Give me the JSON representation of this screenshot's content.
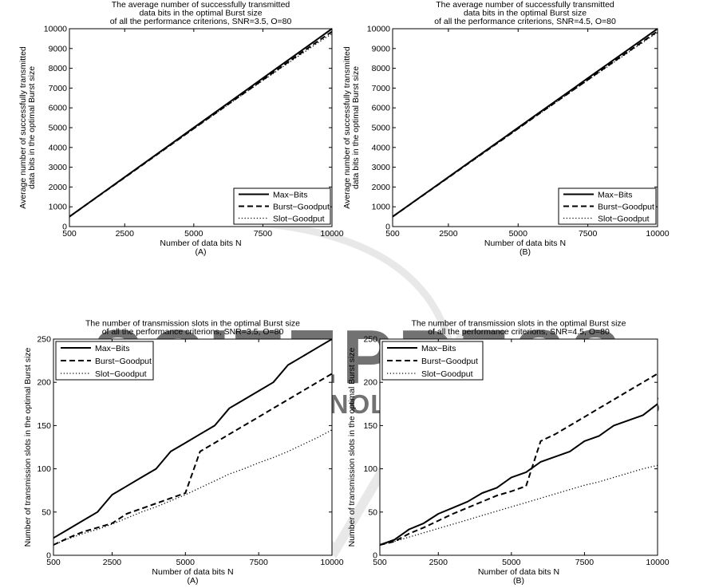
{
  "watermark": {
    "line1": "SCITEPRESS",
    "line2": "SCIENCE AND TECHNOLOGY PUBLICATIONS",
    "color": "#cfcfcf"
  },
  "chart_data": [
    {
      "type": "line",
      "title": "The average number of successfully transmitted\ndata bits in the optimal Burst size\nof all the performance criterions, SNR=3.5, O=80",
      "xlabel": "Number of data bits N",
      "ylabel": "Average number of successfully transmitted\ndata bits in the optimal Burst size",
      "caption": "(A)",
      "xlim": [
        500,
        10000
      ],
      "ylim": [
        0,
        10000
      ],
      "xticks": [
        "500",
        "2500",
        "5000",
        "7500",
        "10000"
      ],
      "yticks": [
        "0",
        "1000",
        "2000",
        "3000",
        "4000",
        "5000",
        "6000",
        "7000",
        "8000",
        "9000",
        "10000"
      ],
      "legend_position": "bottom-right",
      "x": [
        500,
        1000,
        1500,
        2000,
        2500,
        3000,
        3500,
        4000,
        4500,
        5000,
        5500,
        6000,
        6500,
        7000,
        7500,
        8000,
        8500,
        9000,
        9500,
        10000
      ],
      "series": [
        {
          "name": "Max−Bits",
          "style": "solid",
          "values": [
            500,
            1000,
            1500,
            2000,
            2500,
            3000,
            3500,
            4000,
            4500,
            5000,
            5500,
            6000,
            6500,
            7000,
            7500,
            8000,
            8500,
            9000,
            9500,
            10000
          ]
        },
        {
          "name": "Burst−Goodput",
          "style": "dashed",
          "values": [
            500,
            995,
            1490,
            1985,
            2480,
            2975,
            3470,
            3965,
            4460,
            4955,
            5450,
            5940,
            6435,
            6925,
            7420,
            7905,
            8400,
            8890,
            9380,
            9850
          ]
        },
        {
          "name": "Slot−Goodput",
          "style": "dotted",
          "values": [
            500,
            995,
            1490,
            1985,
            2480,
            2975,
            3465,
            3960,
            4450,
            4945,
            5430,
            5920,
            6410,
            6895,
            7380,
            7860,
            8345,
            8820,
            9300,
            9750
          ]
        }
      ]
    },
    {
      "type": "line",
      "title": "The average number of successfully transmitted\ndata bits in the optimal Burst size\nof all the performance criterions, SNR=4.5, O=80",
      "xlabel": "Number of data bits N",
      "ylabel": "Average number of successfully transmitted\ndata bits in the optimal Burst size",
      "caption": "(B)",
      "xlim": [
        500,
        10000
      ],
      "ylim": [
        0,
        10000
      ],
      "xticks": [
        "500",
        "2500",
        "5000",
        "7500",
        "10000"
      ],
      "yticks": [
        "0",
        "1000",
        "2000",
        "3000",
        "4000",
        "5000",
        "6000",
        "7000",
        "8000",
        "9000",
        "10000"
      ],
      "legend_position": "bottom-right",
      "x": [
        500,
        1000,
        1500,
        2000,
        2500,
        3000,
        3500,
        4000,
        4500,
        5000,
        5500,
        6000,
        6500,
        7000,
        7500,
        8000,
        8500,
        9000,
        9500,
        10000
      ],
      "series": [
        {
          "name": "Max−Bits",
          "style": "solid",
          "values": [
            500,
            1000,
            1500,
            2000,
            2500,
            3000,
            3500,
            4000,
            4500,
            5000,
            5500,
            6000,
            6500,
            7000,
            7500,
            8000,
            8500,
            9000,
            9500,
            10000
          ]
        },
        {
          "name": "Burst−Goodput",
          "style": "dashed",
          "values": [
            500,
            995,
            1490,
            1985,
            2480,
            2975,
            3470,
            3965,
            4460,
            4955,
            5450,
            5945,
            6440,
            6930,
            7425,
            7915,
            8405,
            8895,
            9385,
            9870
          ]
        },
        {
          "name": "Slot−Goodput",
          "style": "dotted",
          "values": [
            500,
            995,
            1490,
            1985,
            2480,
            2975,
            3465,
            3960,
            4455,
            4945,
            5440,
            5930,
            6420,
            6910,
            7395,
            7880,
            8365,
            8850,
            9330,
            9810
          ]
        }
      ]
    },
    {
      "type": "line",
      "title": "The number of transmission slots in the optimal Burst size\nof all the performance criterions, SNR=3.5, O=80",
      "xlabel": "Number of data bits N",
      "ylabel": "Number of transmission slots in the optimal Burst size",
      "caption": "(A)",
      "xlim": [
        500,
        10000
      ],
      "ylim": [
        0,
        250
      ],
      "xticks": [
        "500",
        "2500",
        "5000",
        "7500",
        "10000"
      ],
      "yticks": [
        "0",
        "50",
        "100",
        "150",
        "200",
        "250"
      ],
      "legend_position": "top-left",
      "x": [
        500,
        1000,
        1500,
        2000,
        2500,
        3000,
        3500,
        4000,
        4500,
        5000,
        5500,
        6000,
        6500,
        7000,
        7500,
        8000,
        8500,
        9000,
        9500,
        10000
      ],
      "series": [
        {
          "name": "Max−Bits",
          "style": "solid",
          "values": [
            20,
            30,
            40,
            50,
            70,
            80,
            90,
            100,
            120,
            130,
            140,
            150,
            170,
            180,
            190,
            200,
            220,
            230,
            240,
            250
          ]
        },
        {
          "name": "Burst−Goodput",
          "style": "dashed",
          "values": [
            12,
            20,
            27,
            32,
            37,
            48,
            54,
            60,
            66,
            72,
            120,
            130,
            140,
            150,
            160,
            170,
            180,
            190,
            200,
            210
          ]
        },
        {
          "name": "Slot−Goodput",
          "style": "dotted",
          "values": [
            12,
            19,
            25,
            30,
            36,
            43,
            50,
            56,
            63,
            70,
            78,
            86,
            94,
            100,
            107,
            113,
            120,
            128,
            136,
            145
          ]
        }
      ]
    },
    {
      "type": "line",
      "title": "The number of transmission slots in the optimal Burst size\nof all the performance criterions, SNR=4.5, O=80",
      "xlabel": "Number of data bits N",
      "ylabel": "Number of transmission slots in the optimal Burst size",
      "caption": "(B)",
      "xlim": [
        500,
        10000
      ],
      "ylim": [
        0,
        250
      ],
      "xticks": [
        "500",
        "2500",
        "5000",
        "7500",
        "10000"
      ],
      "yticks": [
        "0",
        "50",
        "100",
        "150",
        "200",
        "250"
      ],
      "legend_position": "top-left",
      "x": [
        500,
        1000,
        1500,
        2000,
        2500,
        3000,
        3500,
        4000,
        4500,
        5000,
        5500,
        6000,
        6500,
        7000,
        7500,
        8000,
        8500,
        9000,
        9500,
        10000
      ],
      "series": [
        {
          "name": "Max−Bits",
          "style": "solid",
          "values": [
            12,
            18,
            30,
            37,
            48,
            55,
            62,
            72,
            78,
            90,
            96,
            108,
            114,
            120,
            132,
            138,
            150,
            156,
            162,
            175
          ]
        },
        {
          "name": "Burst−Goodput",
          "style": "dashed",
          "values": [
            12,
            16,
            25,
            32,
            40,
            48,
            55,
            62,
            69,
            74,
            80,
            132,
            140,
            150,
            160,
            170,
            180,
            190,
            200,
            210
          ]
        },
        {
          "name": "Slot−Goodput",
          "style": "dotted",
          "values": [
            12,
            16,
            21,
            26,
            31,
            36,
            41,
            46,
            51,
            56,
            61,
            66,
            71,
            76,
            81,
            85,
            90,
            95,
            100,
            104
          ]
        }
      ]
    }
  ]
}
